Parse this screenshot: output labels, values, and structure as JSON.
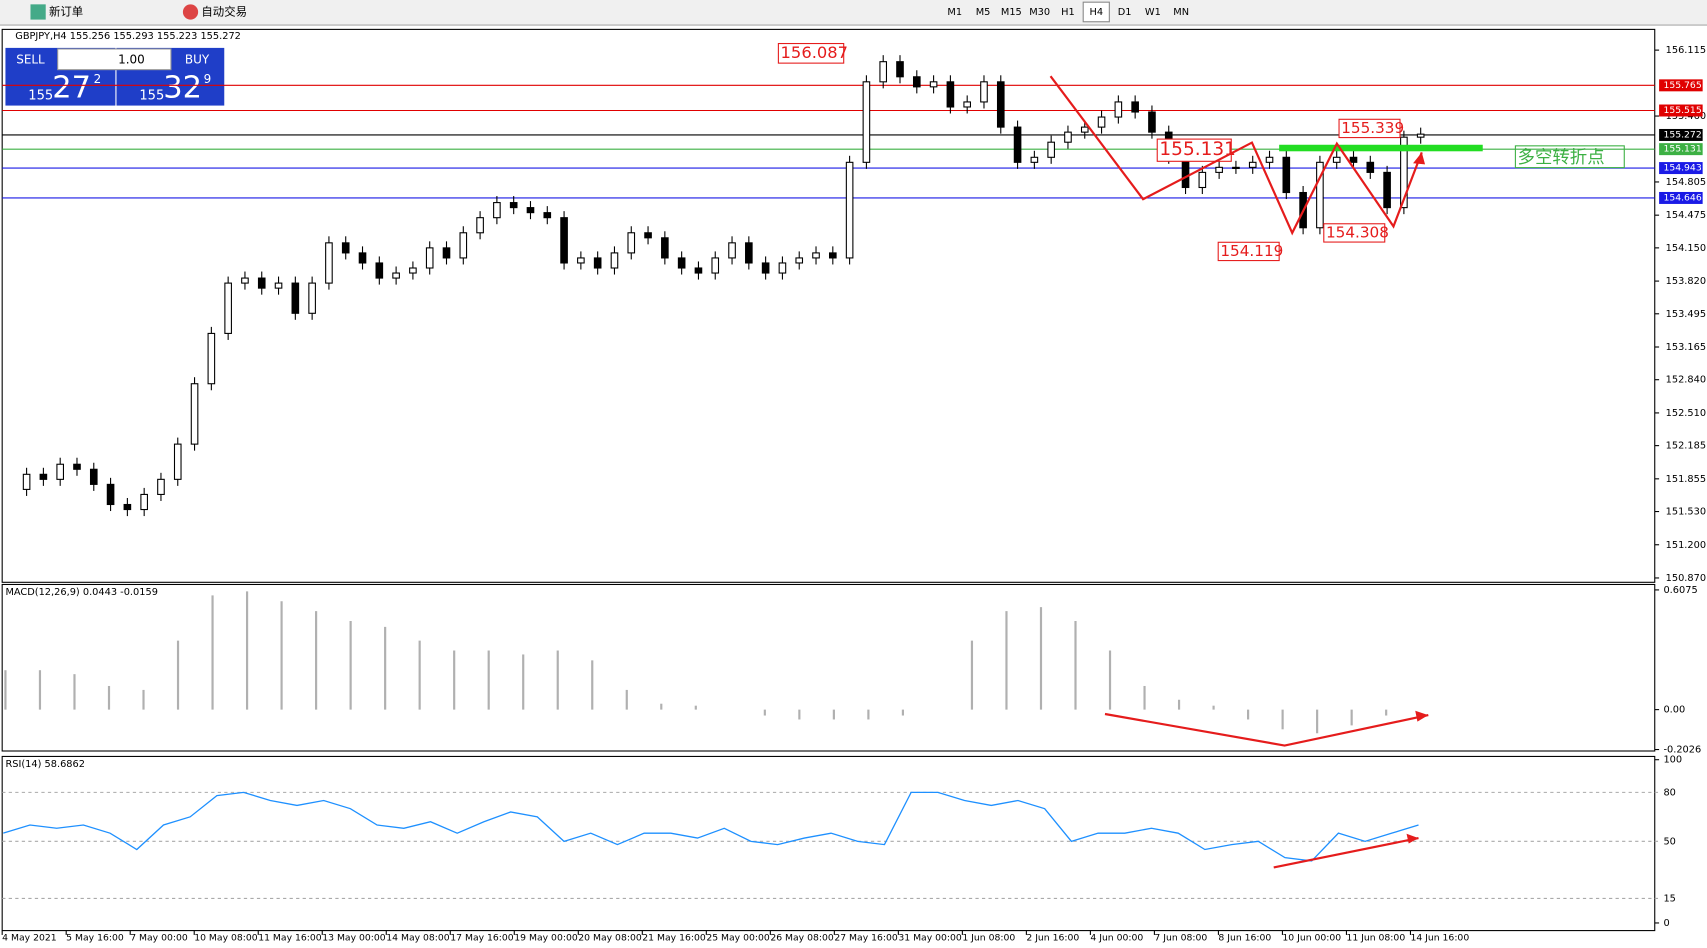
{
  "toolbar": {
    "new_order": "新订单",
    "auto_trading": "自动交易",
    "timeframes": [
      "M1",
      "M5",
      "M15",
      "M30",
      "H1",
      "H4",
      "D1",
      "W1",
      "MN"
    ],
    "active_timeframe": 5
  },
  "chart_header": "GBPJPY,H4  155.256 155.293 155.223 155.272",
  "trade_panel": {
    "sell": "SELL",
    "buy": "BUY",
    "lots": "1.00",
    "sell_big": "155",
    "sell_main": "27",
    "sell_sup": "2",
    "buy_big": "155",
    "buy_main": "32",
    "buy_sup": "9"
  },
  "price_chart": {
    "ylim": [
      150.827,
      156.321
    ],
    "price_ticks": [
      156.115,
      {
        "value": 155.46,
        "label": "155.460"
      },
      154.805,
      154.475,
      {
        "value": 154.15,
        "label": "154.150"
      },
      {
        "value": 153.82,
        "label": "153.820"
      },
      153.495,
      153.165,
      {
        "value": 152.84,
        "label": "152.840"
      },
      {
        "value": 152.51,
        "label": "152.510"
      },
      152.185,
      151.855,
      {
        "value": 151.53,
        "label": "151.530"
      },
      {
        "value": 151.2,
        "label": "151.200"
      },
      {
        "value": 150.87,
        "label": "150.870"
      }
    ],
    "closes": [
      151.75,
      151.9,
      151.85,
      152.0,
      151.95,
      151.8,
      151.6,
      151.55,
      151.7,
      151.85,
      152.2,
      152.8,
      153.3,
      153.8,
      153.85,
      153.75,
      153.8,
      153.5,
      153.8,
      154.2,
      154.1,
      154.0,
      153.85,
      153.9,
      153.95,
      154.15,
      154.05,
      154.3,
      154.45,
      154.6,
      154.55,
      154.5,
      154.45,
      154.0,
      154.05,
      153.95,
      154.1,
      154.3,
      154.25,
      154.05,
      153.95,
      153.9,
      154.05,
      154.2,
      154.0,
      153.9,
      154.0,
      154.05,
      154.1,
      154.05,
      155.0,
      155.8,
      156.0,
      155.85,
      155.75,
      155.8,
      155.55,
      155.6,
      155.8,
      155.35,
      155.0,
      155.05,
      155.2,
      155.3,
      155.35,
      155.45,
      155.6,
      155.5,
      155.3,
      155.05,
      154.75,
      154.9,
      154.95,
      154.95,
      155.0,
      155.05,
      154.7,
      154.35,
      155.0,
      155.05,
      155.0,
      154.9,
      154.55,
      155.25,
      155.28
    ],
    "levels": [
      {
        "value": 155.765,
        "color": "#e00000"
      },
      {
        "value": 155.515,
        "color": "#e00000"
      },
      {
        "value": 155.272,
        "color": "#000000"
      },
      {
        "value": 155.131,
        "color": "#3cb043"
      },
      {
        "value": 154.943,
        "color": "#1a1ae6"
      },
      {
        "value": 154.646,
        "color": "#1a1ae6"
      }
    ],
    "annotations": [
      156.087,
      155.131,
      155.339,
      154.119,
      154.308
    ],
    "note": "多空转折点",
    "dates": [
      "4 May 2021",
      "5 May 16:00",
      "7 May 00:00",
      "10 May 08:00",
      "11 May 16:00",
      "13 May 00:00",
      "14 May 08:00",
      "17 May 16:00",
      "19 May 00:00",
      "20 May 08:00",
      "21 May 16:00",
      "25 May 00:00",
      "26 May 08:00",
      "27 May 16:00",
      "31 May 00:00",
      "1 Jun 08:00",
      "2 Jun 16:00",
      "4 Jun 00:00",
      "7 Jun 08:00",
      "8 Jun 16:00",
      "10 Jun 00:00",
      "11 Jun 08:00",
      "14 Jun 16:00"
    ]
  },
  "macd": {
    "label": "MACD(12,26,9) 0.0443 -0.0159",
    "ylim": [
      -0.21,
      0.635
    ],
    "ticks": [
      0.6075,
      {
        "value": 0,
        "label": "0.00"
      },
      -0.2026
    ],
    "histogram": [
      0.2,
      0.2,
      0.18,
      0.12,
      0.1,
      0.35,
      0.58,
      0.6,
      0.55,
      0.5,
      0.45,
      0.42,
      0.35,
      0.3,
      0.3,
      0.28,
      0.3,
      0.25,
      0.1,
      0.03,
      0.02,
      0.0,
      -0.03,
      -0.05,
      -0.05,
      -0.05,
      -0.03,
      0.0,
      0.35,
      0.5,
      0.52,
      0.45,
      0.3,
      0.12,
      0.05,
      0.02,
      -0.05,
      -0.1,
      -0.12,
      -0.08,
      -0.03,
      0.0
    ]
  },
  "rsi": {
    "label": "RSI(14) 58.6862",
    "ylim": [
      0,
      100
    ],
    "ticks": [
      100,
      80,
      50,
      15,
      0
    ],
    "values": [
      55,
      60,
      58,
      60,
      55,
      45,
      60,
      65,
      78,
      80,
      75,
      72,
      75,
      70,
      60,
      58,
      62,
      55,
      62,
      68,
      65,
      50,
      55,
      48,
      55,
      55,
      52,
      58,
      50,
      48,
      52,
      55,
      50,
      48,
      80,
      80,
      75,
      72,
      75,
      70,
      50,
      55,
      55,
      58,
      55,
      45,
      48,
      50,
      40,
      38,
      55,
      50,
      55,
      60
    ]
  }
}
